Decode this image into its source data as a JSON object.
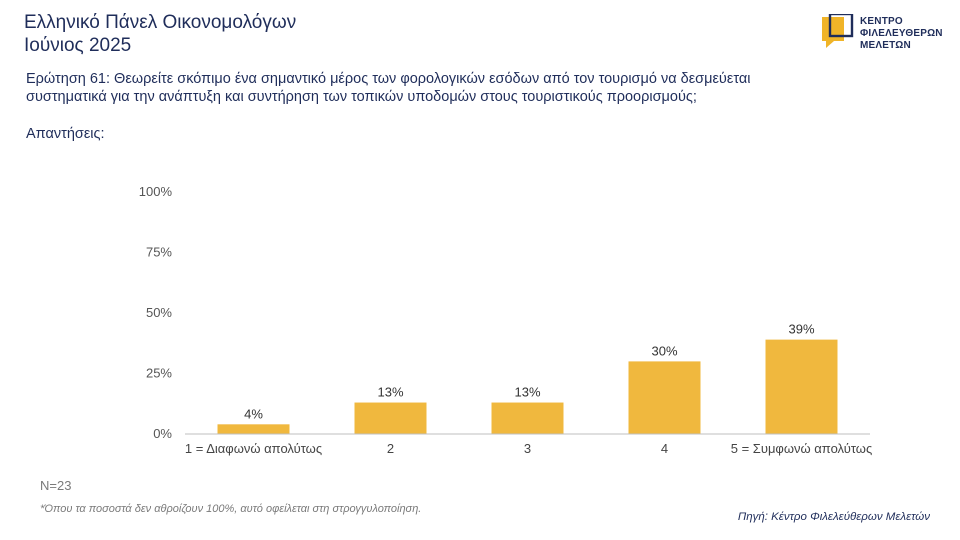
{
  "header": {
    "title_line1": "Ελληνικό Πάνελ Οικονομολόγων",
    "title_line2": "Ιούνιος 2025"
  },
  "logo": {
    "line1": "ΚΕΝΤΡΟ",
    "line2": "ΦΙΛΕΛΕΥΘΕΡΩΝ",
    "line3": "ΜΕΛΕΤΩΝ",
    "icon": "speech-bubble-logo-icon",
    "colors": {
      "primary": "#f0b428",
      "dark": "#1f2d5a"
    }
  },
  "question": {
    "line1": "Ερώτηση 61: Θεωρείτε σκόπιμο ένα σημαντικό μέρος των φορολογικών εσόδων από τον τουρισμό να δεσμεύεται",
    "line2": "συστηματικά για την ανάπτυξη και συντήρηση των τοπικών υποδομών στους τουριστικούς προορισμούς;"
  },
  "answers_label": "Απαντήσεις:",
  "chart_data": {
    "type": "bar",
    "categories": [
      "1 = Διαφωνώ απολύτως",
      "2",
      "3",
      "4",
      "5 = Συμφωνώ απολύτως"
    ],
    "values": [
      4,
      13,
      13,
      30,
      39
    ],
    "value_labels": [
      "4%",
      "13%",
      "13%",
      "30%",
      "39%"
    ],
    "ylim": [
      0,
      100
    ],
    "yticks": [
      0,
      25,
      50,
      75,
      100
    ],
    "ytick_labels": [
      "0%",
      "25%",
      "50%",
      "75%",
      "100%"
    ],
    "grid": false,
    "bar_color": "#f0b83e"
  },
  "sample": "N=23",
  "footnote": "*Όπου τα ποσοστά δεν αθροίζουν 100%, αυτό οφείλεται στη στρογγυλοποίηση.",
  "source": "Πηγή: Κέντρο Φιλελεύθερων Μελετών"
}
